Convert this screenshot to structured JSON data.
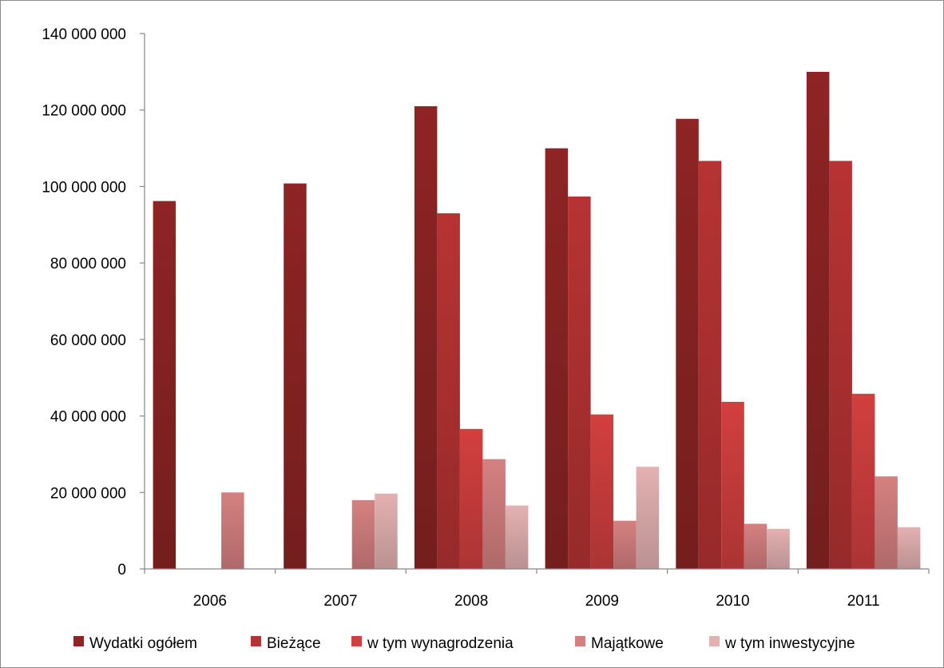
{
  "chart_data": {
    "type": "bar",
    "categories": [
      "2006",
      "2007",
      "2008",
      "2009",
      "2010",
      "2011"
    ],
    "series": [
      {
        "name": "Wydatki ogółem",
        "color": "#8e2424",
        "values": [
          96200000,
          100800000,
          121000000,
          110000000,
          117700000,
          130000000
        ]
      },
      {
        "name": "Bieżące",
        "color": "#b73333",
        "values": [
          null,
          null,
          93000000,
          97400000,
          106700000,
          106700000
        ]
      },
      {
        "name": "w tym wynagrodzenia",
        "color": "#d23f3f",
        "values": [
          null,
          null,
          36600000,
          40400000,
          43700000,
          45800000
        ]
      },
      {
        "name": "Majątkowe",
        "color": "#d58080",
        "values": [
          20000000,
          18000000,
          28700000,
          12600000,
          11800000,
          24200000
        ]
      },
      {
        "name": "w tym inwestycyjne",
        "color": "#e3b1b1",
        "values": [
          null,
          19700000,
          16600000,
          26700000,
          10500000,
          10900000
        ]
      }
    ],
    "y_ticks": [
      "0",
      "20 000 000",
      "40 000 000",
      "60 000 000",
      "80 000 000",
      "100 000 000",
      "120 000 000",
      "140 000 000"
    ],
    "ylim": [
      0,
      140000000
    ],
    "grid": false,
    "legend_position": "bottom"
  }
}
